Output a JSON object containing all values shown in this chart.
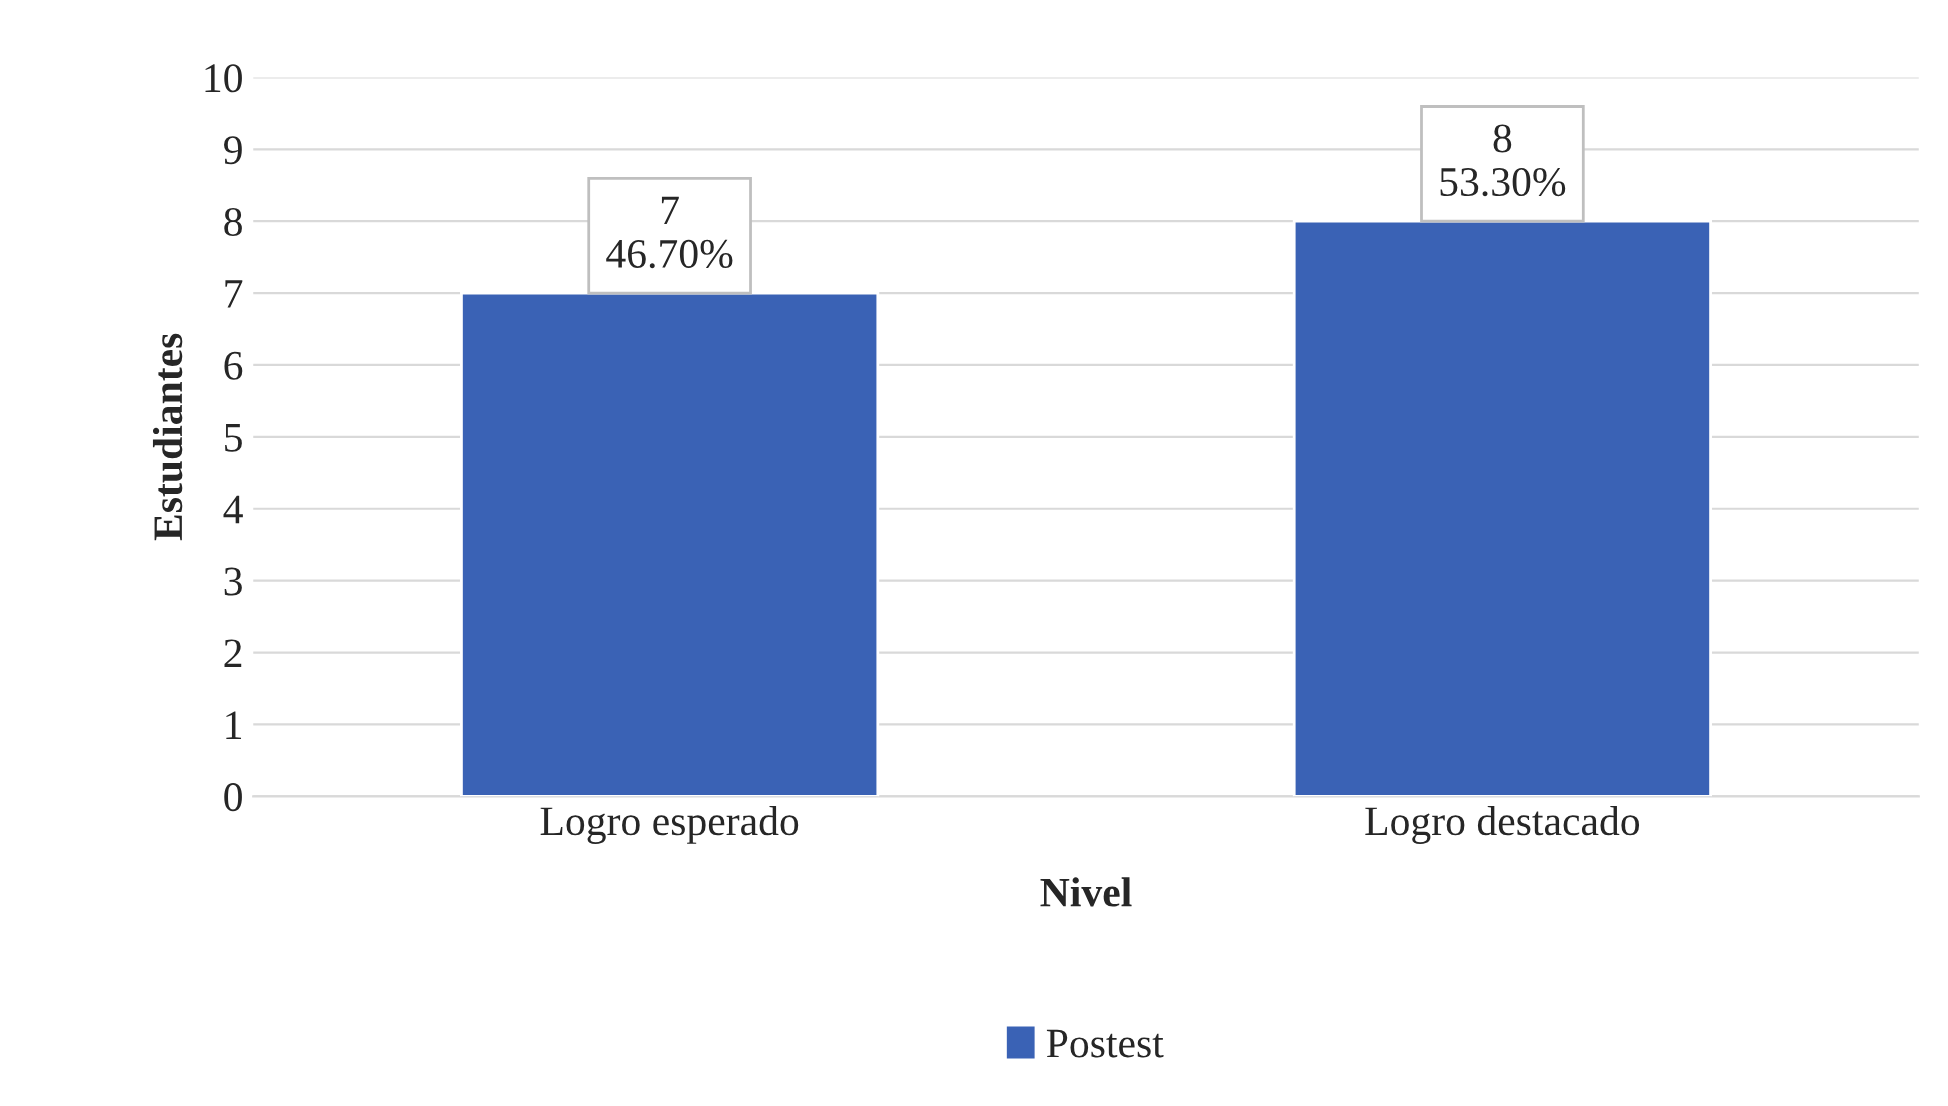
{
  "chart_data": {
    "type": "bar",
    "xlabel": "Nivel",
    "ylabel": "Estudiantes",
    "categories": [
      "Logro esperado",
      "Logro destacado"
    ],
    "series": [
      {
        "name": "Postest",
        "color": "#3a62b5",
        "values": [
          7,
          8
        ],
        "value_labels": [
          "7\n46.70%",
          "8\n53.30%"
        ]
      }
    ],
    "ylim": [
      0,
      10
    ],
    "yticks": [
      0,
      1,
      2,
      3,
      4,
      5,
      6,
      7,
      8,
      9,
      10
    ],
    "grid": "y",
    "legend": "bottom"
  }
}
